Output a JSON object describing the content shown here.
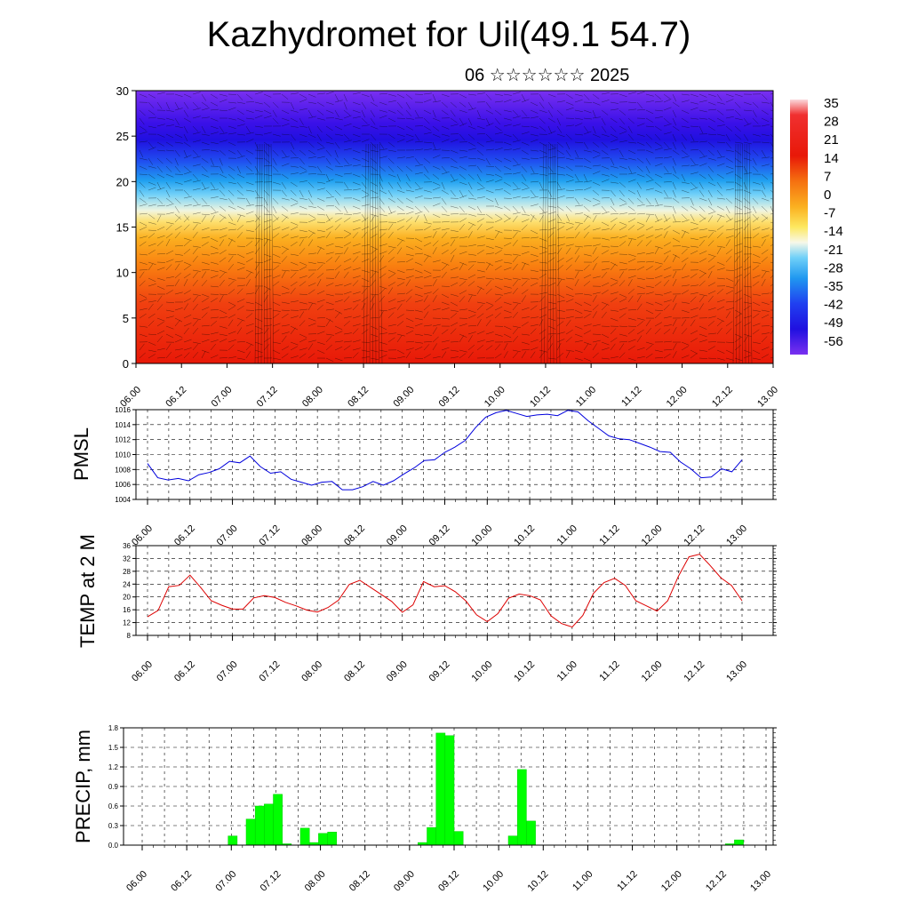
{
  "title": "Kazhydromet for Uil(49.1 54.7)",
  "subtitle": "06 ☆☆☆☆☆☆ 2025",
  "time_labels": [
    "06.00",
    "06.12",
    "07.00",
    "07.12",
    "08.00",
    "08.12",
    "09.00",
    "09.12",
    "10.00",
    "10.12",
    "11.00",
    "11.12",
    "12.00",
    "12.12",
    "13.00"
  ],
  "chart_data": [
    {
      "type": "heatmap",
      "ylim": [
        0,
        30
      ],
      "yticks": [
        "0",
        "5",
        "10",
        "15",
        "20",
        "25",
        "30"
      ],
      "colorbar": {
        "labels": [
          "35",
          "28",
          "21",
          "14",
          "7",
          "0",
          "-7",
          "-14",
          "-21",
          "-28",
          "-35",
          "-42",
          "-49",
          "-56"
        ],
        "range": [
          -60,
          38
        ]
      },
      "colors": {
        "warm_low": "#e81808",
        "cold_high": "#4a1cf0"
      }
    },
    {
      "type": "line",
      "ylabel": "PMSL",
      "ylim": [
        1004,
        1016
      ],
      "yticks": [
        "1004",
        "1006",
        "1008",
        "1010",
        "1012",
        "1014",
        "1016"
      ],
      "color": "#0000dd",
      "values": [
        1008.8,
        1006.9,
        1006.6,
        1006.8,
        1006.5,
        1007.3,
        1007.6,
        1008.1,
        1009.1,
        1008.9,
        1009.8,
        1008.4,
        1007.5,
        1007.7,
        1006.7,
        1006.3,
        1005.9,
        1006.3,
        1006.4,
        1005.3,
        1005.3,
        1005.7,
        1006.4,
        1005.9,
        1006.5,
        1007.4,
        1008.2,
        1009.2,
        1009.3,
        1010.3,
        1011.0,
        1011.9,
        1013.6,
        1015.0,
        1015.6,
        1015.9,
        1015.5,
        1015.1,
        1015.3,
        1015.4,
        1015.2,
        1015.9,
        1015.7,
        1014.5,
        1013.5,
        1012.5,
        1012.1,
        1012.0,
        1011.5,
        1011.0,
        1010.4,
        1010.3,
        1009.0,
        1008.1,
        1006.9,
        1007.0,
        1008.1,
        1007.7,
        1009.3
      ]
    },
    {
      "type": "line",
      "ylabel": "TEMP at 2 M",
      "ylim": [
        8,
        36
      ],
      "yticks": [
        "8",
        "12",
        "16",
        "20",
        "24",
        "28",
        "32",
        "36"
      ],
      "color": "#dd0000",
      "values": [
        13.8,
        15.8,
        23.2,
        23.6,
        26.8,
        23.0,
        18.8,
        17.4,
        16.2,
        16.2,
        19.7,
        20.4,
        19.8,
        18.3,
        17.2,
        15.9,
        15.3,
        16.7,
        19.0,
        23.9,
        25.2,
        23.0,
        20.8,
        18.6,
        15.2,
        17.5,
        24.8,
        23.2,
        23.5,
        21.6,
        18.7,
        14.4,
        12.3,
        14.8,
        19.6,
        20.9,
        20.4,
        19.1,
        14.1,
        11.7,
        10.6,
        14.2,
        21.1,
        24.5,
        25.8,
        23.6,
        18.8,
        17.2,
        15.6,
        18.8,
        26.4,
        32.5,
        33.3,
        29.8,
        26.0,
        23.6,
        18.8
      ]
    },
    {
      "type": "bar",
      "ylabel": "PRECIP, mm",
      "ylim": [
        0,
        1.8
      ],
      "yticks": [
        "0.0",
        "0.3",
        "0.6",
        "0.9",
        "1.2",
        "1.5",
        "1.8"
      ],
      "color": "#00ff00",
      "values": [
        0,
        0,
        0,
        0,
        0,
        0,
        0,
        0,
        0,
        0,
        0.14,
        0,
        0.4,
        0.6,
        0.63,
        0.78,
        0.02,
        0,
        0.26,
        0.04,
        0.18,
        0.2,
        0,
        0,
        0,
        0,
        0,
        0,
        0,
        0,
        0,
        0.04,
        0.27,
        1.72,
        1.68,
        0.21,
        0,
        0,
        0,
        0,
        0,
        0.14,
        1.16,
        0.37,
        0,
        0,
        0,
        0,
        0,
        0,
        0,
        0,
        0,
        0,
        0,
        0,
        0,
        0,
        0,
        0,
        0,
        0,
        0,
        0,
        0,
        0.02,
        0.08,
        0,
        0,
        0
      ]
    }
  ]
}
